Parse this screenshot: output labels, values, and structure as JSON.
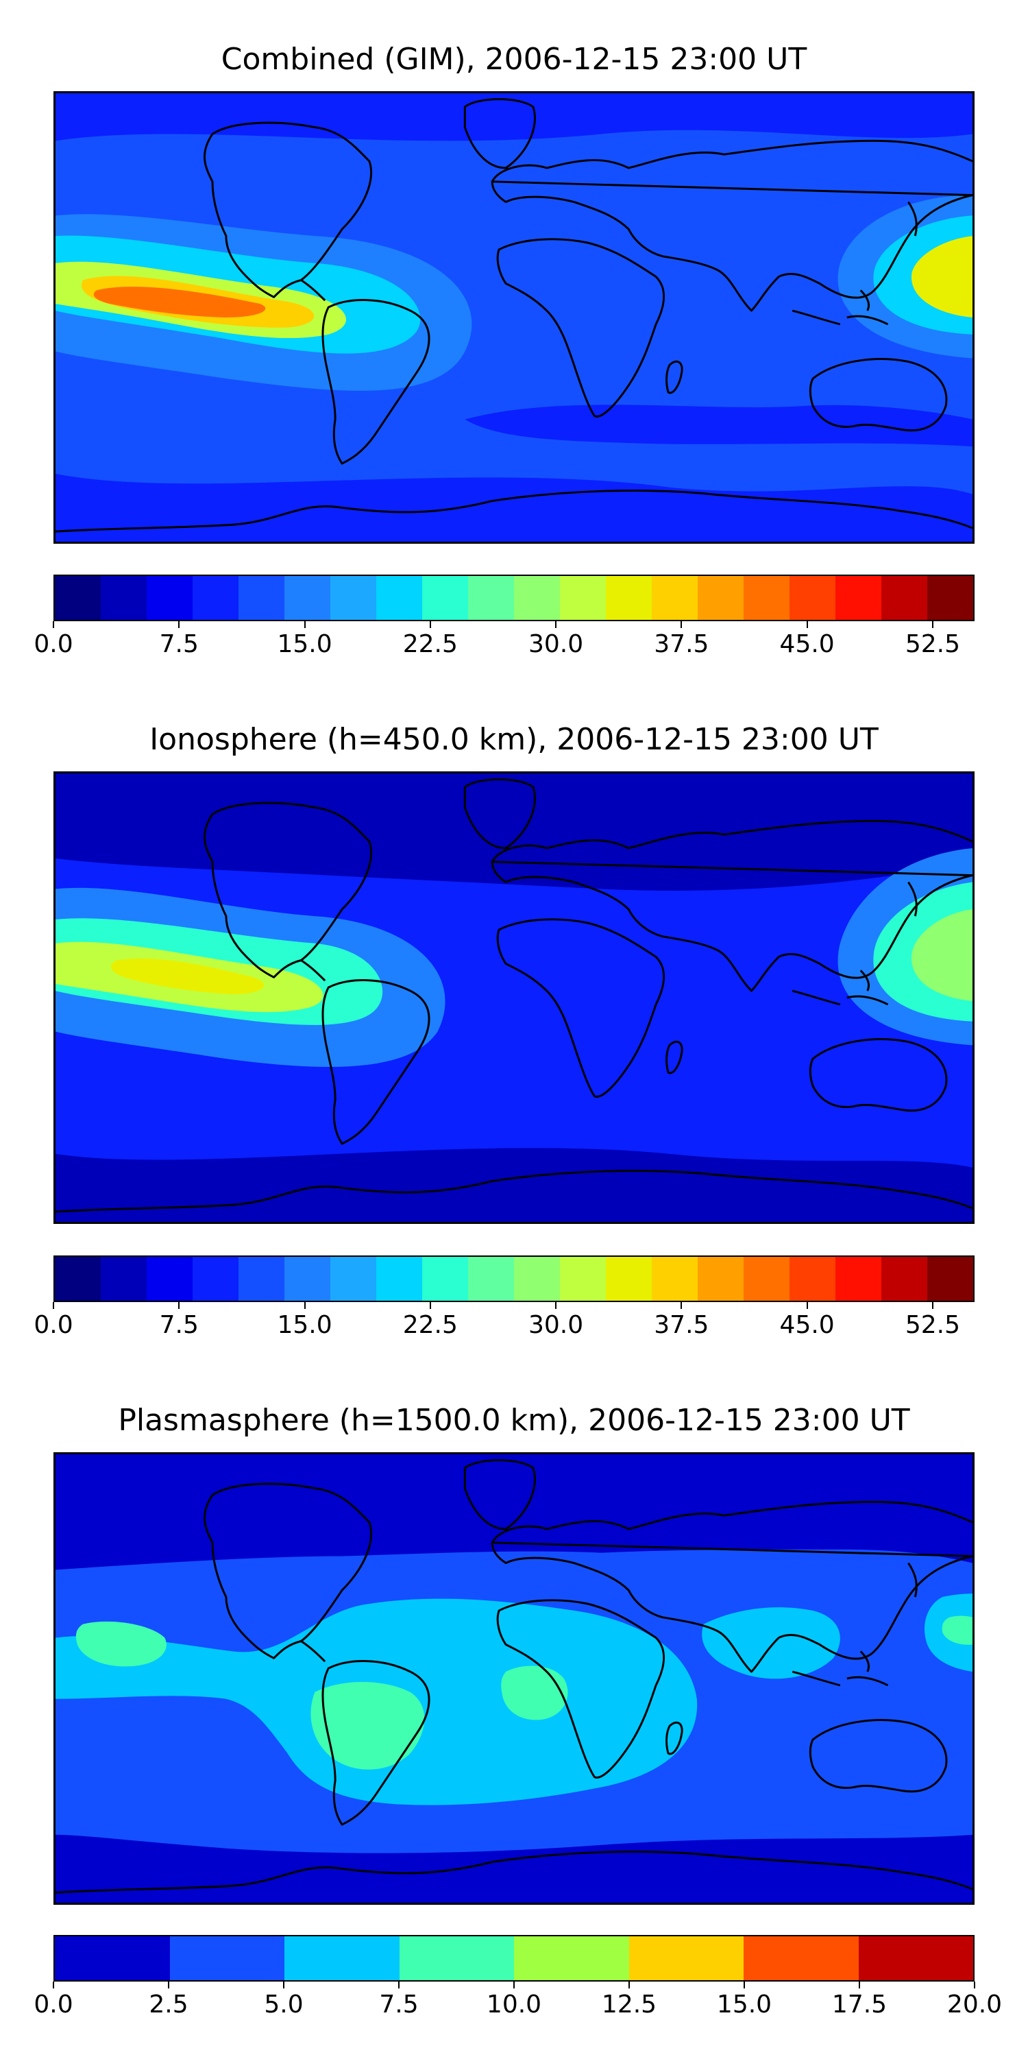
{
  "panels": [
    {
      "id": "combined",
      "title": "Combined (GIM), 2006-12-15 23:00 UT",
      "colorbar": {
        "colors": [
          "#000080",
          "#0000b8",
          "#0000f0",
          "#0a20ff",
          "#1450ff",
          "#1e80ff",
          "#1ca8ff",
          "#00d4ff",
          "#29ffd0",
          "#60ffa0",
          "#90ff70",
          "#c0ff40",
          "#e8f000",
          "#ffd000",
          "#ffa000",
          "#ff7000",
          "#ff4000",
          "#ff1000",
          "#c00000",
          "#800000"
        ],
        "ticks": [
          "0.0",
          "7.5",
          "15.0",
          "22.5",
          "30.0",
          "37.5",
          "45.0",
          "52.5"
        ],
        "range": [
          0,
          55
        ],
        "tick_values": [
          0,
          7.5,
          15,
          22.5,
          30,
          37.5,
          45,
          52.5
        ]
      },
      "map_fields": {
        "background_color": "#1450ff",
        "low_color": "#0a20ff",
        "features": [
          {
            "name": "pacific-anomaly-outer",
            "color": "#1e80ff"
          },
          {
            "name": "pacific-anomaly-mid",
            "color": "#00d4ff"
          },
          {
            "name": "pacific-anomaly-inner",
            "color": "#c0ff40"
          },
          {
            "name": "pacific-anomaly-core",
            "color": "#ffd000"
          },
          {
            "name": "pacific-anomaly-peak",
            "color": "#ff7000"
          },
          {
            "name": "east-asia-anomaly",
            "color": "#e8f000"
          }
        ]
      }
    },
    {
      "id": "ionosphere",
      "title": "Ionosphere  (h=450.0 km), 2006-12-15 23:00 UT",
      "colorbar": {
        "colors": [
          "#000080",
          "#0000b8",
          "#0000f0",
          "#0a20ff",
          "#1450ff",
          "#1e80ff",
          "#1ca8ff",
          "#00d4ff",
          "#29ffd0",
          "#60ffa0",
          "#90ff70",
          "#c0ff40",
          "#e8f000",
          "#ffd000",
          "#ffa000",
          "#ff7000",
          "#ff4000",
          "#ff1000",
          "#c00000",
          "#800000"
        ],
        "ticks": [
          "0.0",
          "7.5",
          "15.0",
          "22.5",
          "30.0",
          "37.5",
          "45.0",
          "52.5"
        ],
        "range": [
          0,
          55
        ],
        "tick_values": [
          0,
          7.5,
          15,
          22.5,
          30,
          37.5,
          45,
          52.5
        ]
      },
      "map_fields": {
        "background_color": "#0a20ff",
        "low_color": "#0000b8",
        "features": [
          {
            "name": "pacific-anomaly-outer",
            "color": "#1e80ff"
          },
          {
            "name": "pacific-anomaly-mid",
            "color": "#29ffd0"
          },
          {
            "name": "pacific-anomaly-inner",
            "color": "#c0ff40"
          },
          {
            "name": "pacific-anomaly-core",
            "color": "#e8f000"
          },
          {
            "name": "east-asia-anomaly",
            "color": "#90ff70"
          }
        ]
      }
    },
    {
      "id": "plasmasphere",
      "title": "Plasmasphere (h=1500.0 km), 2006-12-15 23:00 UT",
      "colorbar": {
        "colors": [
          "#0000cc",
          "#1450ff",
          "#00c8ff",
          "#40ffb0",
          "#a0ff40",
          "#ffd000",
          "#ff5000",
          "#c00000"
        ],
        "ticks": [
          "0.0",
          "2.5",
          "5.0",
          "7.5",
          "10.0",
          "12.5",
          "15.0",
          "17.5",
          "20.0"
        ],
        "range": [
          0,
          20
        ],
        "tick_values": [
          0,
          2.5,
          5,
          7.5,
          10,
          12.5,
          15,
          17.5,
          20
        ]
      },
      "map_fields": {
        "background_color": "#0000cc",
        "low_color": "#0000cc",
        "features": [
          {
            "name": "mid-band",
            "color": "#1450ff"
          },
          {
            "name": "equatorial-region",
            "color": "#00c8ff"
          },
          {
            "name": "south-america-peak",
            "color": "#40ffb0"
          },
          {
            "name": "africa-peak",
            "color": "#40ffb0"
          },
          {
            "name": "pacific-peak",
            "color": "#40ffb0"
          },
          {
            "name": "west-pacific-peak",
            "color": "#40ffb0"
          }
        ]
      }
    }
  ]
}
